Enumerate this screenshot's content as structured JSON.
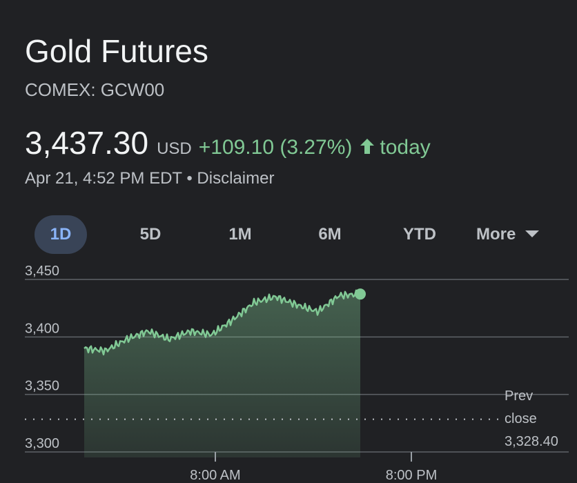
{
  "header": {
    "title": "Gold Futures",
    "ticker": "COMEX: GCW00"
  },
  "quote": {
    "price": "3,437.30",
    "currency": "USD",
    "change": "+109.10 (3.27%)",
    "direction_icon": "arrow-up-icon",
    "period": "today",
    "timestamp": "Apr 21, 4:52 PM EDT",
    "separator": "•",
    "disclaimer": "Disclaimer"
  },
  "tabs": [
    {
      "label": "1D",
      "active": true
    },
    {
      "label": "5D",
      "active": false
    },
    {
      "label": "1M",
      "active": false
    },
    {
      "label": "6M",
      "active": false
    },
    {
      "label": "YTD",
      "active": false
    },
    {
      "label": "More",
      "active": false
    }
  ],
  "colors": {
    "background": "#202124",
    "positive": "#81c995",
    "active_tab_bg": "#394457",
    "active_tab_text": "#8ab4f8"
  },
  "chart_data": {
    "type": "area",
    "ylim": [
      3300,
      3450
    ],
    "y_ticks": [
      "3,450",
      "3,400",
      "3,350",
      "3,300"
    ],
    "x_tick_labels": [
      "8:00 AM",
      "8:00 PM"
    ],
    "x": [
      "4:00 AM",
      "5:00 AM",
      "6:00 AM",
      "7:00 AM",
      "8:00 AM",
      "9:00 AM",
      "10:00 AM",
      "11:00 AM",
      "12:00 PM",
      "1:00 PM",
      "2:00 PM",
      "3:00 PM",
      "4:00 PM",
      "4:52 PM"
    ],
    "values": [
      3390,
      3388,
      3398,
      3405,
      3398,
      3405,
      3402,
      3415,
      3430,
      3435,
      3428,
      3422,
      3436,
      3437.3
    ],
    "prev_close": {
      "label_line1": "Prev",
      "label_line2": "close",
      "value": "3,328.40",
      "numeric": 3328.4
    },
    "grid": true
  }
}
